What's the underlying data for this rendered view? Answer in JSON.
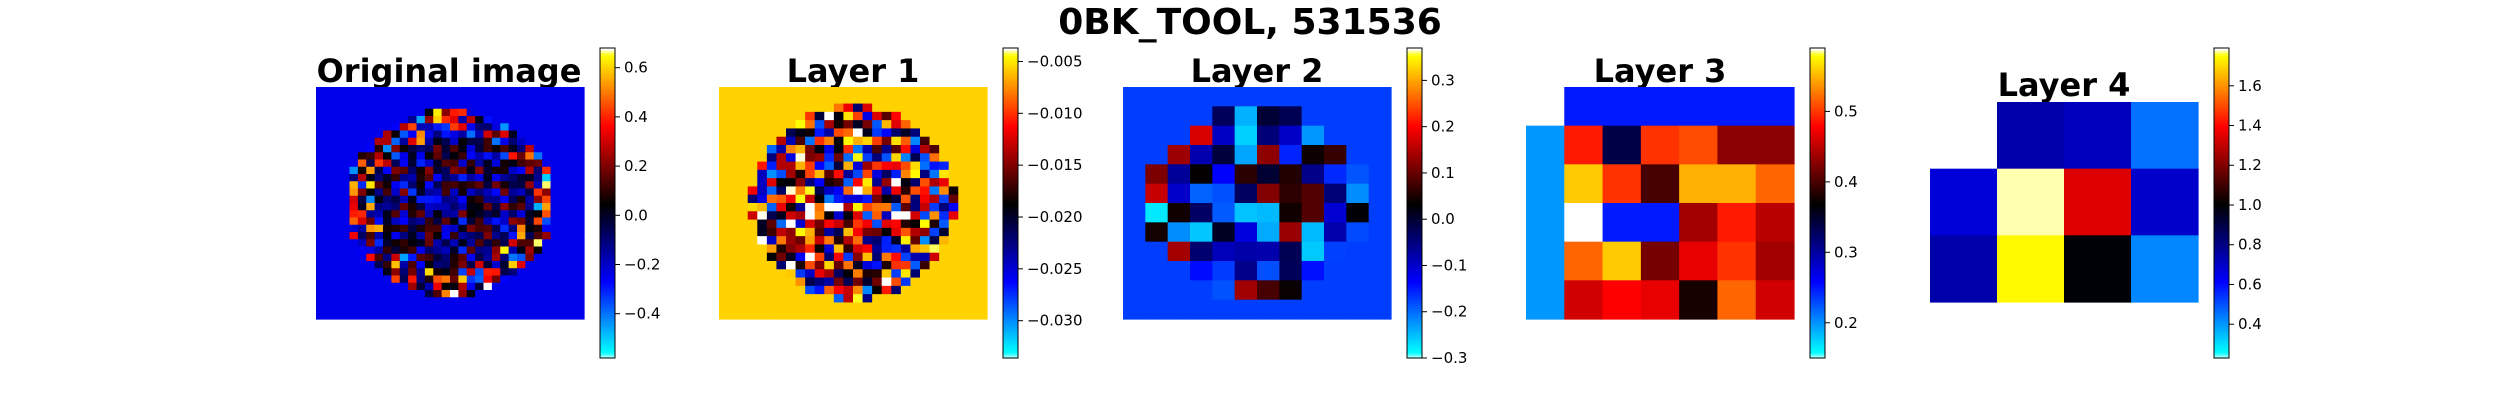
{
  "figure_title": "0BK_TOOL, 531536",
  "colormap": "jet-style diverging (cyan-blue-black-red-yellow)",
  "chart_data": [
    {
      "type": "heatmap",
      "title": "Original image",
      "grid": "off",
      "rows": 32,
      "cols": 32,
      "content": "circular brain-like mask of noisy values on dark-blue background",
      "colorbar": {
        "vmin": -0.58,
        "vmax": 0.68,
        "ticks": [
          -0.4,
          -0.2,
          0.0,
          0.2,
          0.4,
          0.6
        ],
        "tick_labels": [
          "−0.4",
          "−0.2",
          "0.0",
          "0.2",
          "0.4",
          "0.6"
        ]
      }
    },
    {
      "type": "heatmap",
      "title": "Layer 1",
      "grid": "off",
      "rows": 28,
      "cols": 28,
      "content": "circular mask of noisy values on dark-red background",
      "colorbar": {
        "vmin": -0.0336,
        "vmax": -0.0037,
        "ticks": [
          -0.005,
          -0.01,
          -0.015,
          -0.02,
          -0.025,
          -0.03
        ],
        "tick_labels": [
          "−0.005",
          "−0.010",
          "−0.015",
          "−0.020",
          "−0.025",
          "−0.030"
        ]
      }
    },
    {
      "type": "heatmap",
      "title": "Layer 2",
      "grid": "off",
      "rows": 12,
      "cols": 12,
      "content": "circular mask of coarse values on dark-navy background",
      "colorbar": {
        "vmin": -0.3,
        "vmax": 0.37,
        "ticks": [
          0.3,
          0.2,
          0.1,
          0.0,
          -0.1,
          -0.2,
          -0.3
        ],
        "tick_labels": [
          "0.3",
          "0.2",
          "0.1",
          "0.0",
          "−0.1",
          "−0.2",
          "−0.3"
        ]
      }
    },
    {
      "type": "heatmap",
      "title": "Layer 3",
      "grid": "off",
      "rows": 6,
      "cols": 7,
      "values": [
        [
          null,
          0.25,
          0.25,
          0.25,
          0.25,
          0.25,
          0.25
        ],
        [
          0.2,
          0.49,
          0.34,
          0.5,
          0.51,
          0.43,
          0.43
        ],
        [
          0.2,
          0.56,
          0.5,
          0.4,
          0.55,
          0.55,
          0.52
        ],
        [
          0.2,
          0.59,
          0.25,
          0.25,
          0.44,
          0.49,
          0.45
        ],
        [
          0.2,
          0.52,
          0.56,
          0.42,
          0.47,
          0.5,
          0.44
        ],
        [
          0.2,
          0.46,
          0.48,
          0.47,
          0.38,
          0.52,
          0.46
        ]
      ],
      "colorbar": {
        "vmin": 0.15,
        "vmax": 0.59,
        "ticks": [
          0.2,
          0.3,
          0.4,
          0.5
        ],
        "tick_labels": [
          "0.2",
          "0.3",
          "0.4",
          "0.5"
        ]
      }
    },
    {
      "type": "heatmap",
      "title": "Layer 4",
      "grid": "off",
      "rows": 3,
      "cols": 4,
      "values": [
        [
          null,
          0.75,
          0.72,
          0.46
        ],
        [
          0.68,
          1.78,
          1.35,
          0.7
        ],
        [
          0.75,
          1.75,
          1.0,
          0.43
        ]
      ],
      "colorbar": {
        "vmin": 0.23,
        "vmax": 1.79,
        "ticks": [
          0.4,
          0.6,
          0.8,
          1.0,
          1.2,
          1.4,
          1.6
        ],
        "tick_labels": [
          "0.4",
          "0.6",
          "0.8",
          "1.0",
          "1.2",
          "1.4",
          "1.6"
        ]
      }
    }
  ]
}
